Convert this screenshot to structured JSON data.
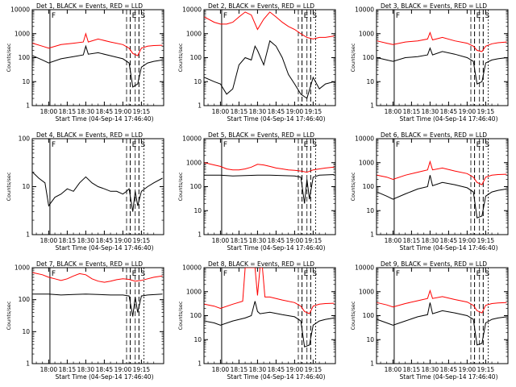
{
  "colors": {
    "events": "#000000",
    "lld": "#ff0000",
    "axes": "#000000"
  },
  "x_axis": {
    "ticks": [
      "18:00",
      "18:15",
      "18:30",
      "18:45",
      "19:00",
      "19:15"
    ],
    "tick_minutes": [
      0,
      15,
      30,
      45,
      60,
      75
    ],
    "label": "Start Time (04-Sep-14 17:46:40)",
    "range_minutes": [
      -13.3,
      93
    ]
  },
  "y_axis_label": "Counts/sec",
  "scale": "log",
  "markers": [
    {
      "label": "F",
      "minute": 1
    },
    {
      "label": "E",
      "minute": 66
    },
    {
      "label": "S",
      "minute": 73
    }
  ],
  "chart_data": [
    {
      "type": "line",
      "title": "Det 1, BLACK = Events, RED = LLD",
      "ylim": [
        1,
        10000
      ],
      "yticks": [
        1,
        10,
        100,
        1000,
        10000
      ],
      "series": [
        {
          "name": "BLACK = Events",
          "color": "#000000",
          "x": [
            -13,
            -5,
            0,
            10,
            20,
            28,
            30,
            32,
            40,
            50,
            60,
            65,
            68,
            72,
            75,
            80,
            85,
            92
          ],
          "y": [
            120,
            80,
            60,
            90,
            110,
            130,
            300,
            140,
            160,
            120,
            90,
            60,
            6,
            8,
            40,
            60,
            70,
            80
          ]
        },
        {
          "name": "RED = LLD",
          "color": "#ff0000",
          "x": [
            -13,
            -5,
            0,
            10,
            20,
            28,
            30,
            32,
            40,
            50,
            60,
            65,
            68,
            72,
            75,
            80,
            85,
            92
          ],
          "y": [
            400,
            300,
            250,
            350,
            400,
            450,
            1000,
            450,
            600,
            450,
            350,
            250,
            150,
            120,
            250,
            300,
            320,
            330
          ]
        }
      ]
    },
    {
      "type": "line",
      "title": "Det 2, BLACK = Events, RED = LLD",
      "ylim": [
        1,
        10000
      ],
      "yticks": [
        1,
        10,
        100,
        1000,
        10000
      ],
      "series": [
        {
          "name": "BLACK = Events",
          "color": "#000000",
          "x": [
            -13,
            -5,
            0,
            5,
            10,
            15,
            20,
            25,
            28,
            30,
            35,
            40,
            45,
            50,
            55,
            60,
            65,
            70,
            75,
            80,
            85,
            92
          ],
          "y": [
            15,
            10,
            8,
            3,
            5,
            50,
            100,
            80,
            300,
            200,
            50,
            500,
            300,
            100,
            20,
            8,
            3,
            2,
            15,
            5,
            8,
            10
          ]
        },
        {
          "name": "RED = LLD",
          "color": "#ff0000",
          "x": [
            -13,
            -5,
            0,
            5,
            10,
            15,
            20,
            25,
            30,
            35,
            40,
            45,
            50,
            55,
            60,
            65,
            70,
            75,
            80,
            85,
            92
          ],
          "y": [
            5000,
            3000,
            2500,
            2500,
            3000,
            5000,
            8000,
            6000,
            1500,
            4000,
            8000,
            5000,
            3000,
            2000,
            1500,
            1000,
            700,
            600,
            700,
            700,
            800
          ]
        }
      ]
    },
    {
      "type": "line",
      "title": "Det 3, BLACK = Events, RED = LLD",
      "ylim": [
        1,
        10000
      ],
      "yticks": [
        1,
        10,
        100,
        1000,
        10000
      ],
      "series": [
        {
          "name": "BLACK = Events",
          "color": "#000000",
          "x": [
            -13,
            -5,
            0,
            10,
            20,
            28,
            30,
            32,
            40,
            50,
            60,
            65,
            68,
            72,
            75,
            80,
            85,
            92
          ],
          "y": [
            100,
            80,
            70,
            100,
            110,
            130,
            250,
            130,
            180,
            140,
            100,
            70,
            8,
            10,
            60,
            80,
            90,
            100
          ]
        },
        {
          "name": "RED = LLD",
          "color": "#ff0000",
          "x": [
            -13,
            -5,
            0,
            10,
            20,
            28,
            30,
            32,
            40,
            50,
            60,
            65,
            68,
            72,
            75,
            80,
            85,
            92
          ],
          "y": [
            500,
            400,
            350,
            450,
            500,
            600,
            1100,
            550,
            700,
            500,
            400,
            300,
            200,
            180,
            300,
            380,
            420,
            450
          ]
        }
      ]
    },
    {
      "type": "line",
      "title": "Det 4, BLACK = Events, RED = LLD",
      "ylim": [
        1,
        100
      ],
      "yticks": [
        1,
        10,
        100
      ],
      "series": [
        {
          "name": "BLACK = Events",
          "color": "#000000",
          "x": [
            -13,
            -8,
            -3,
            0,
            5,
            10,
            15,
            20,
            25,
            30,
            35,
            40,
            45,
            50,
            55,
            60,
            63,
            65,
            68,
            70,
            72,
            75,
            80,
            85,
            92
          ],
          "y": [
            20,
            15,
            12,
            4,
            6,
            7,
            9,
            8,
            12,
            16,
            12,
            10,
            9,
            8,
            8,
            7,
            8,
            9,
            3,
            8,
            4,
            8,
            10,
            12,
            15
          ]
        }
      ]
    },
    {
      "type": "line",
      "title": "Det 5, BLACK = Events, RED = LLD",
      "ylim": [
        1,
        10000
      ],
      "yticks": [
        1,
        10,
        100,
        1000,
        10000
      ],
      "series": [
        {
          "name": "BLACK = Events",
          "color": "#000000",
          "x": [
            -13,
            0,
            10,
            20,
            30,
            40,
            50,
            60,
            65,
            68,
            70,
            72,
            75,
            80,
            92
          ],
          "y": [
            300,
            300,
            280,
            290,
            300,
            300,
            290,
            280,
            250,
            20,
            200,
            30,
            250,
            300,
            320
          ]
        },
        {
          "name": "RED = LLD",
          "color": "#ff0000",
          "x": [
            -13,
            -5,
            0,
            5,
            10,
            15,
            20,
            25,
            30,
            35,
            40,
            45,
            50,
            55,
            60,
            65,
            70,
            75,
            80,
            85,
            92
          ],
          "y": [
            1000,
            800,
            700,
            550,
            500,
            500,
            550,
            650,
            850,
            800,
            700,
            600,
            550,
            500,
            480,
            450,
            400,
            500,
            550,
            600,
            650
          ]
        }
      ]
    },
    {
      "type": "line",
      "title": "Det 6, BLACK = Events, RED = LLD",
      "ylim": [
        1,
        10000
      ],
      "yticks": [
        1,
        10,
        100,
        1000,
        10000
      ],
      "series": [
        {
          "name": "BLACK = Events",
          "color": "#000000",
          "x": [
            -13,
            -5,
            0,
            10,
            20,
            28,
            30,
            32,
            40,
            50,
            60,
            65,
            68,
            72,
            75,
            80,
            85,
            92
          ],
          "y": [
            60,
            40,
            30,
            50,
            80,
            100,
            300,
            110,
            150,
            120,
            90,
            60,
            5,
            6,
            40,
            60,
            70,
            80
          ]
        },
        {
          "name": "RED = LLD",
          "color": "#ff0000",
          "x": [
            -13,
            -5,
            0,
            10,
            20,
            28,
            30,
            32,
            40,
            50,
            60,
            65,
            68,
            72,
            75,
            80,
            85,
            92
          ],
          "y": [
            300,
            250,
            200,
            300,
            400,
            500,
            1100,
            500,
            600,
            450,
            350,
            250,
            150,
            120,
            250,
            300,
            320,
            330
          ]
        }
      ]
    },
    {
      "type": "line",
      "title": "Det 7, BLACK = Events, RED = LLD",
      "ylim": [
        1,
        1000
      ],
      "yticks": [
        1,
        10,
        100,
        1000
      ],
      "series": [
        {
          "name": "BLACK = Events",
          "color": "#000000",
          "x": [
            -13,
            0,
            10,
            20,
            30,
            40,
            50,
            60,
            65,
            68,
            70,
            72,
            75,
            80,
            92
          ],
          "y": [
            150,
            150,
            140,
            145,
            150,
            145,
            140,
            140,
            130,
            30,
            120,
            40,
            130,
            140,
            150
          ]
        },
        {
          "name": "RED = LLD",
          "color": "#ff0000",
          "x": [
            -13,
            -5,
            0,
            5,
            10,
            15,
            20,
            25,
            30,
            35,
            40,
            45,
            50,
            55,
            60,
            65,
            70,
            75,
            80,
            85,
            92
          ],
          "y": [
            700,
            600,
            500,
            450,
            400,
            450,
            550,
            650,
            600,
            450,
            380,
            350,
            380,
            420,
            450,
            430,
            380,
            400,
            450,
            500,
            550
          ]
        }
      ]
    },
    {
      "type": "line",
      "title": "Det 8, BLACK = Events, RED = LLD",
      "ylim": [
        1,
        10000
      ],
      "yticks": [
        1,
        10,
        100,
        1000,
        10000
      ],
      "series": [
        {
          "name": "BLACK = Events",
          "color": "#000000",
          "x": [
            -13,
            -5,
            0,
            10,
            20,
            25,
            28,
            30,
            32,
            40,
            50,
            60,
            65,
            68,
            72,
            75,
            80,
            85,
            92
          ],
          "y": [
            60,
            50,
            40,
            60,
            80,
            100,
            400,
            150,
            120,
            140,
            110,
            90,
            60,
            5,
            6,
            40,
            60,
            70,
            80
          ]
        },
        {
          "name": "RED = LLD",
          "color": "#ff0000",
          "x": [
            -13,
            -5,
            0,
            10,
            18,
            20,
            22,
            24,
            28,
            30,
            32,
            34,
            36,
            40,
            50,
            60,
            65,
            68,
            72,
            75,
            80,
            85,
            92
          ],
          "y": [
            300,
            250,
            200,
            300,
            400,
            10000,
            10000,
            10000,
            10000,
            700,
            10000,
            10000,
            600,
            600,
            450,
            350,
            250,
            150,
            120,
            250,
            300,
            320,
            330
          ]
        }
      ]
    },
    {
      "type": "line",
      "title": "Det 9, BLACK = Events, RED = LLD",
      "ylim": [
        1,
        10000
      ],
      "yticks": [
        1,
        10,
        100,
        1000,
        10000
      ],
      "series": [
        {
          "name": "BLACK = Events",
          "color": "#000000",
          "x": [
            -13,
            -5,
            0,
            10,
            20,
            28,
            30,
            32,
            40,
            50,
            60,
            65,
            68,
            72,
            75,
            80,
            85,
            92
          ],
          "y": [
            70,
            50,
            40,
            60,
            90,
            110,
            350,
            120,
            160,
            130,
            100,
            70,
            6,
            7,
            50,
            70,
            80,
            90
          ]
        },
        {
          "name": "RED = LLD",
          "color": "#ff0000",
          "x": [
            -13,
            -5,
            0,
            10,
            20,
            28,
            30,
            32,
            40,
            50,
            60,
            65,
            68,
            72,
            75,
            80,
            85,
            92
          ],
          "y": [
            350,
            280,
            230,
            320,
            420,
            520,
            1100,
            520,
            620,
            470,
            370,
            270,
            160,
            130,
            270,
            320,
            340,
            350
          ]
        }
      ]
    }
  ]
}
